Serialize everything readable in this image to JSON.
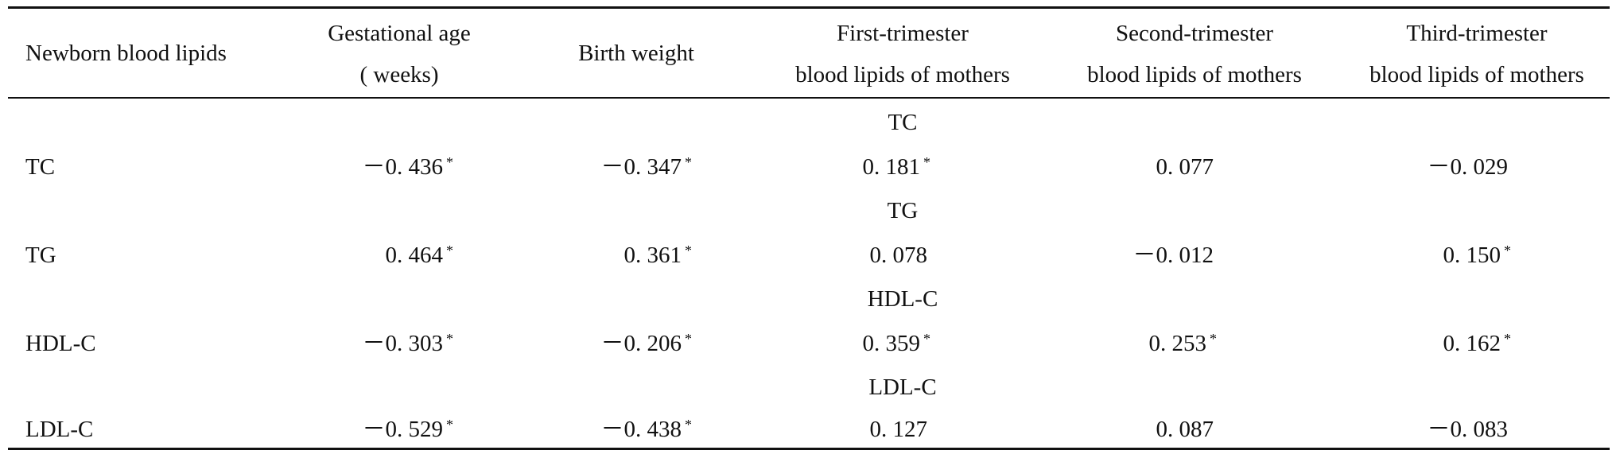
{
  "table": {
    "headers": [
      {
        "lines": [
          "Newborn blood lipids"
        ]
      },
      {
        "lines": [
          "Gestational age",
          "( weeks)"
        ]
      },
      {
        "lines": [
          "Birth weight"
        ]
      },
      {
        "lines": [
          "First-trimester",
          "blood lipids of mothers"
        ]
      },
      {
        "lines": [
          "Second-trimester",
          "blood lipids of mothers"
        ]
      },
      {
        "lines": [
          "Third-trimester",
          "blood lipids of mothers"
        ]
      }
    ],
    "sections": [
      {
        "subheader": "TC",
        "row": {
          "label": "TC",
          "cells": [
            {
              "value": "－0. 436",
              "mark": "*"
            },
            {
              "value": "－0. 347",
              "mark": "*"
            },
            {
              "value": "0. 181",
              "mark": "*"
            },
            {
              "value": "0. 077",
              "mark": ""
            },
            {
              "value": "－0. 029",
              "mark": ""
            }
          ]
        }
      },
      {
        "subheader": "TG",
        "row": {
          "label": "TG",
          "cells": [
            {
              "value": "0. 464",
              "mark": "*"
            },
            {
              "value": "0. 361",
              "mark": "*"
            },
            {
              "value": "0. 078",
              "mark": ""
            },
            {
              "value": "－0. 012",
              "mark": ""
            },
            {
              "value": "0. 150",
              "mark": "*"
            }
          ]
        }
      },
      {
        "subheader": "HDL-C",
        "row": {
          "label": "HDL-C",
          "cells": [
            {
              "value": "－0. 303",
              "mark": "*"
            },
            {
              "value": "－0. 206",
              "mark": "*"
            },
            {
              "value": "0. 359",
              "mark": "*"
            },
            {
              "value": "0. 253",
              "mark": "*"
            },
            {
              "value": "0. 162",
              "mark": "*"
            }
          ]
        }
      },
      {
        "subheader": "LDL-C",
        "row": {
          "label": "LDL-C",
          "cells": [
            {
              "value": "－0. 529",
              "mark": "*"
            },
            {
              "value": "－0. 438",
              "mark": "*"
            },
            {
              "value": "0. 127",
              "mark": ""
            },
            {
              "value": "0. 087",
              "mark": ""
            },
            {
              "value": "－0. 083",
              "mark": ""
            }
          ]
        }
      }
    ]
  }
}
